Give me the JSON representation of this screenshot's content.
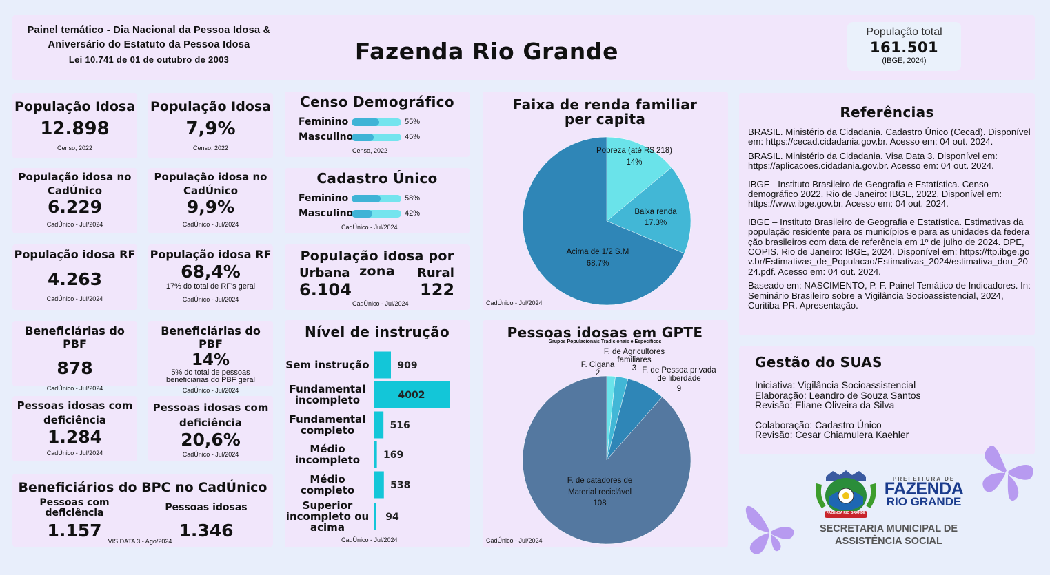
{
  "header": {
    "subtitle_line1": "Painel temático - Dia Nacional da Pessoa Idosa &",
    "subtitle_line2": "Aniversário do Estatuto da Pessoa Idosa",
    "subtitle_line3": "Lei 10.741 de 01 de outubro de 2003",
    "title": "Fazenda Rio Grande",
    "pop_label": "População total",
    "pop_value": "161.501",
    "pop_source": "(IBGE, 2024)"
  },
  "cards": {
    "pop_idosa_abs": {
      "title": "População Idosa",
      "value": "12.898",
      "source": "Censo, 2022"
    },
    "pop_idosa_pct": {
      "title": "População Idosa",
      "value": "7,9%",
      "source": "Censo, 2022"
    },
    "cad_abs": {
      "title1": "População idosa no",
      "title2": "CadÚnico",
      "value": "6.229",
      "source": "CadÚnico - Jul/2024"
    },
    "cad_pct": {
      "title1": "População idosa no",
      "title2": "CadÚnico",
      "value": "9,9%",
      "source": "CadÚnico - Jul/2024"
    },
    "rf_abs": {
      "title": "População idosa RF",
      "value": "4.263",
      "source": "CadÚnico - Jul/2024"
    },
    "rf_pct": {
      "title": "População idosa RF",
      "value": "68,4%",
      "note": "17% do total de RF's geral",
      "source": "CadÚnico - Jul/2024"
    },
    "pbf_abs": {
      "title": "Beneficiárias do PBF",
      "value": "878",
      "source": "CadÚnico - Jul/2024"
    },
    "pbf_pct": {
      "title": "Beneficiárias do PBF",
      "value": "14%",
      "note1": "5% do total de pessoas",
      "note2": "beneficiárias do PBF geral",
      "source": "CadÚnico - Jul/2024"
    },
    "def_abs": {
      "title1": "Pessoas idosas com",
      "title2": "deficiência",
      "value": "1.284",
      "source": "CadÚnico - Jul/2024"
    },
    "def_pct": {
      "title1": "Pessoas idosas com",
      "title2": "deficiência",
      "value": "20,6%",
      "source": "CadÚnico - Jul/2024"
    }
  },
  "bpc": {
    "title": "Beneficiários do BPC no CadÚnico",
    "col1_label1": "Pessoas com",
    "col1_label2": "deficiência",
    "col1_value": "1.157",
    "col2_label": "Pessoas idosas",
    "col2_value": "1.346",
    "source": "VIS DATA 3 - Ago/2024"
  },
  "censo": {
    "title": "Censo Demográfico",
    "rows": [
      {
        "label": "Feminino",
        "value": "55%",
        "pct": 55
      },
      {
        "label": "Masculino",
        "value": "45%",
        "pct": 45
      }
    ],
    "source": "Censo, 2022"
  },
  "cadastro": {
    "title": "Cadastro Único",
    "rows": [
      {
        "label": "Feminino",
        "value": "58%",
        "pct": 58
      },
      {
        "label": "Masculino",
        "value": "42%",
        "pct": 42
      }
    ],
    "source": "CadÚnico - Jul/2024"
  },
  "zona": {
    "title": "População idosa por zona",
    "urbana_label": "Urbana",
    "urbana_value": "6.104",
    "rural_label": "Rural",
    "rural_value": "122",
    "source": "CadÚnico - Jul/2024"
  },
  "instrucao_source": "CadÚnico - Jul/2024",
  "renda_source": "CadÚnico - Jul/2024",
  "gpte_source": "CadÚnico - Jul/2024",
  "references": {
    "title": "Referências",
    "items": [
      "BRASIL. Ministério da Cidadania. Cadastro Único (Cecad). Disponível em: https://cecad.cidadania.gov.br. Acesso em: 04 out. 2024.",
      "BRASIL. Ministério da Cidadania. Visa Data 3. Disponível em: https://aplicacoes.cidadania.gov.br. Acesso em: 04 out. 2024.",
      "IBGE - Instituto Brasileiro de Geografia e Estatística. Censo demográfico 2022. Rio de Janeiro: IBGE, 2022. Disponível em: https://www.ibge.gov.br. Acesso em: 04 out. 2024.",
      "IBGE – Instituto Brasileiro de Geografia e Estatística. Estimativas da população residente para os municípios e para as unidades da federação brasileiros com data de referência em 1º de julho de 2024. DPE, COPIS. Rio de Janeiro: IBGE, 2024. Disponível em: https://ftp.ibge.gov.br/Estimativas_de_Populacao/Estimativas_2024/estimativa_dou_2024.pdf. Acesso em: 04 out. 2024.",
      "Baseado em: NASCIMENTO, P. F. Painel Temático de Indicadores. In: Seminário Brasileiro sobre a Vigilância Socioassistencial, 2024, Curitiba-PR. Apresentação."
    ]
  },
  "gestao": {
    "title": "Gestão do SUAS",
    "lines": [
      "Iniciativa: Vigilância Socioassistencial",
      "Elaboração: Leandro de Souza Santos",
      "Revisão: Eliane Oliveira da Silva",
      "Colaboração: Cadastro Único",
      "Revisão: Cesar Chiamulera Kaehler"
    ]
  },
  "logo": {
    "pref": "PREFEITURA DE",
    "name1": "FAZENDA",
    "name2": "RIO GRANDE",
    "sec1": "SECRETARIA MUNICIPAL DE",
    "sec2": "ASSISTÊNCIA SOCIAL",
    "seal_text": "FAZENDA RIO GRANDE"
  },
  "colors": {
    "panel": "#f1e6fb",
    "bar": "#13c6d8",
    "pie_light": "#6ae3ea",
    "pie_mid": "#42b7d6",
    "pie_dark": "#2f86b7",
    "pie_slate": "#5478a0",
    "butterfly": "#b79af0"
  },
  "chart_data": [
    {
      "type": "bar",
      "orientation": "horizontal",
      "title": "Nível de instrução",
      "categories": [
        "Sem instrução",
        "Fundamental incompleto",
        "Fundamental completo",
        "Médio incompleto",
        "Médio completo",
        "Superior incompleto ou acima"
      ],
      "values": [
        909,
        4002,
        516,
        169,
        538,
        94
      ]
    },
    {
      "type": "pie",
      "title": "Faixa de renda familiar per capita",
      "slices": [
        {
          "name": "Pobreza (até R$ 218)",
          "value": 14,
          "label": "14%"
        },
        {
          "name": "Baixa renda",
          "value": 17.3,
          "label": "17.3%"
        },
        {
          "name": "Acima de 1/2 S.M",
          "value": 68.7,
          "label": "68.7%"
        }
      ]
    },
    {
      "type": "pie",
      "title": "Pessoas idosas em GPTE",
      "subtitle": "Grupos Populacionais Tradicionais e Específicos",
      "slices": [
        {
          "name": "F. Cigana",
          "value": 2,
          "label": "2"
        },
        {
          "name": "F. de Agricultores familiares",
          "value": 3,
          "label": "3"
        },
        {
          "name": "F. de Pessoa privada de liberdade",
          "value": 9,
          "label": "9"
        },
        {
          "name": "F. de catadores de Material reciclável",
          "value": 108,
          "label": "108"
        }
      ]
    }
  ]
}
